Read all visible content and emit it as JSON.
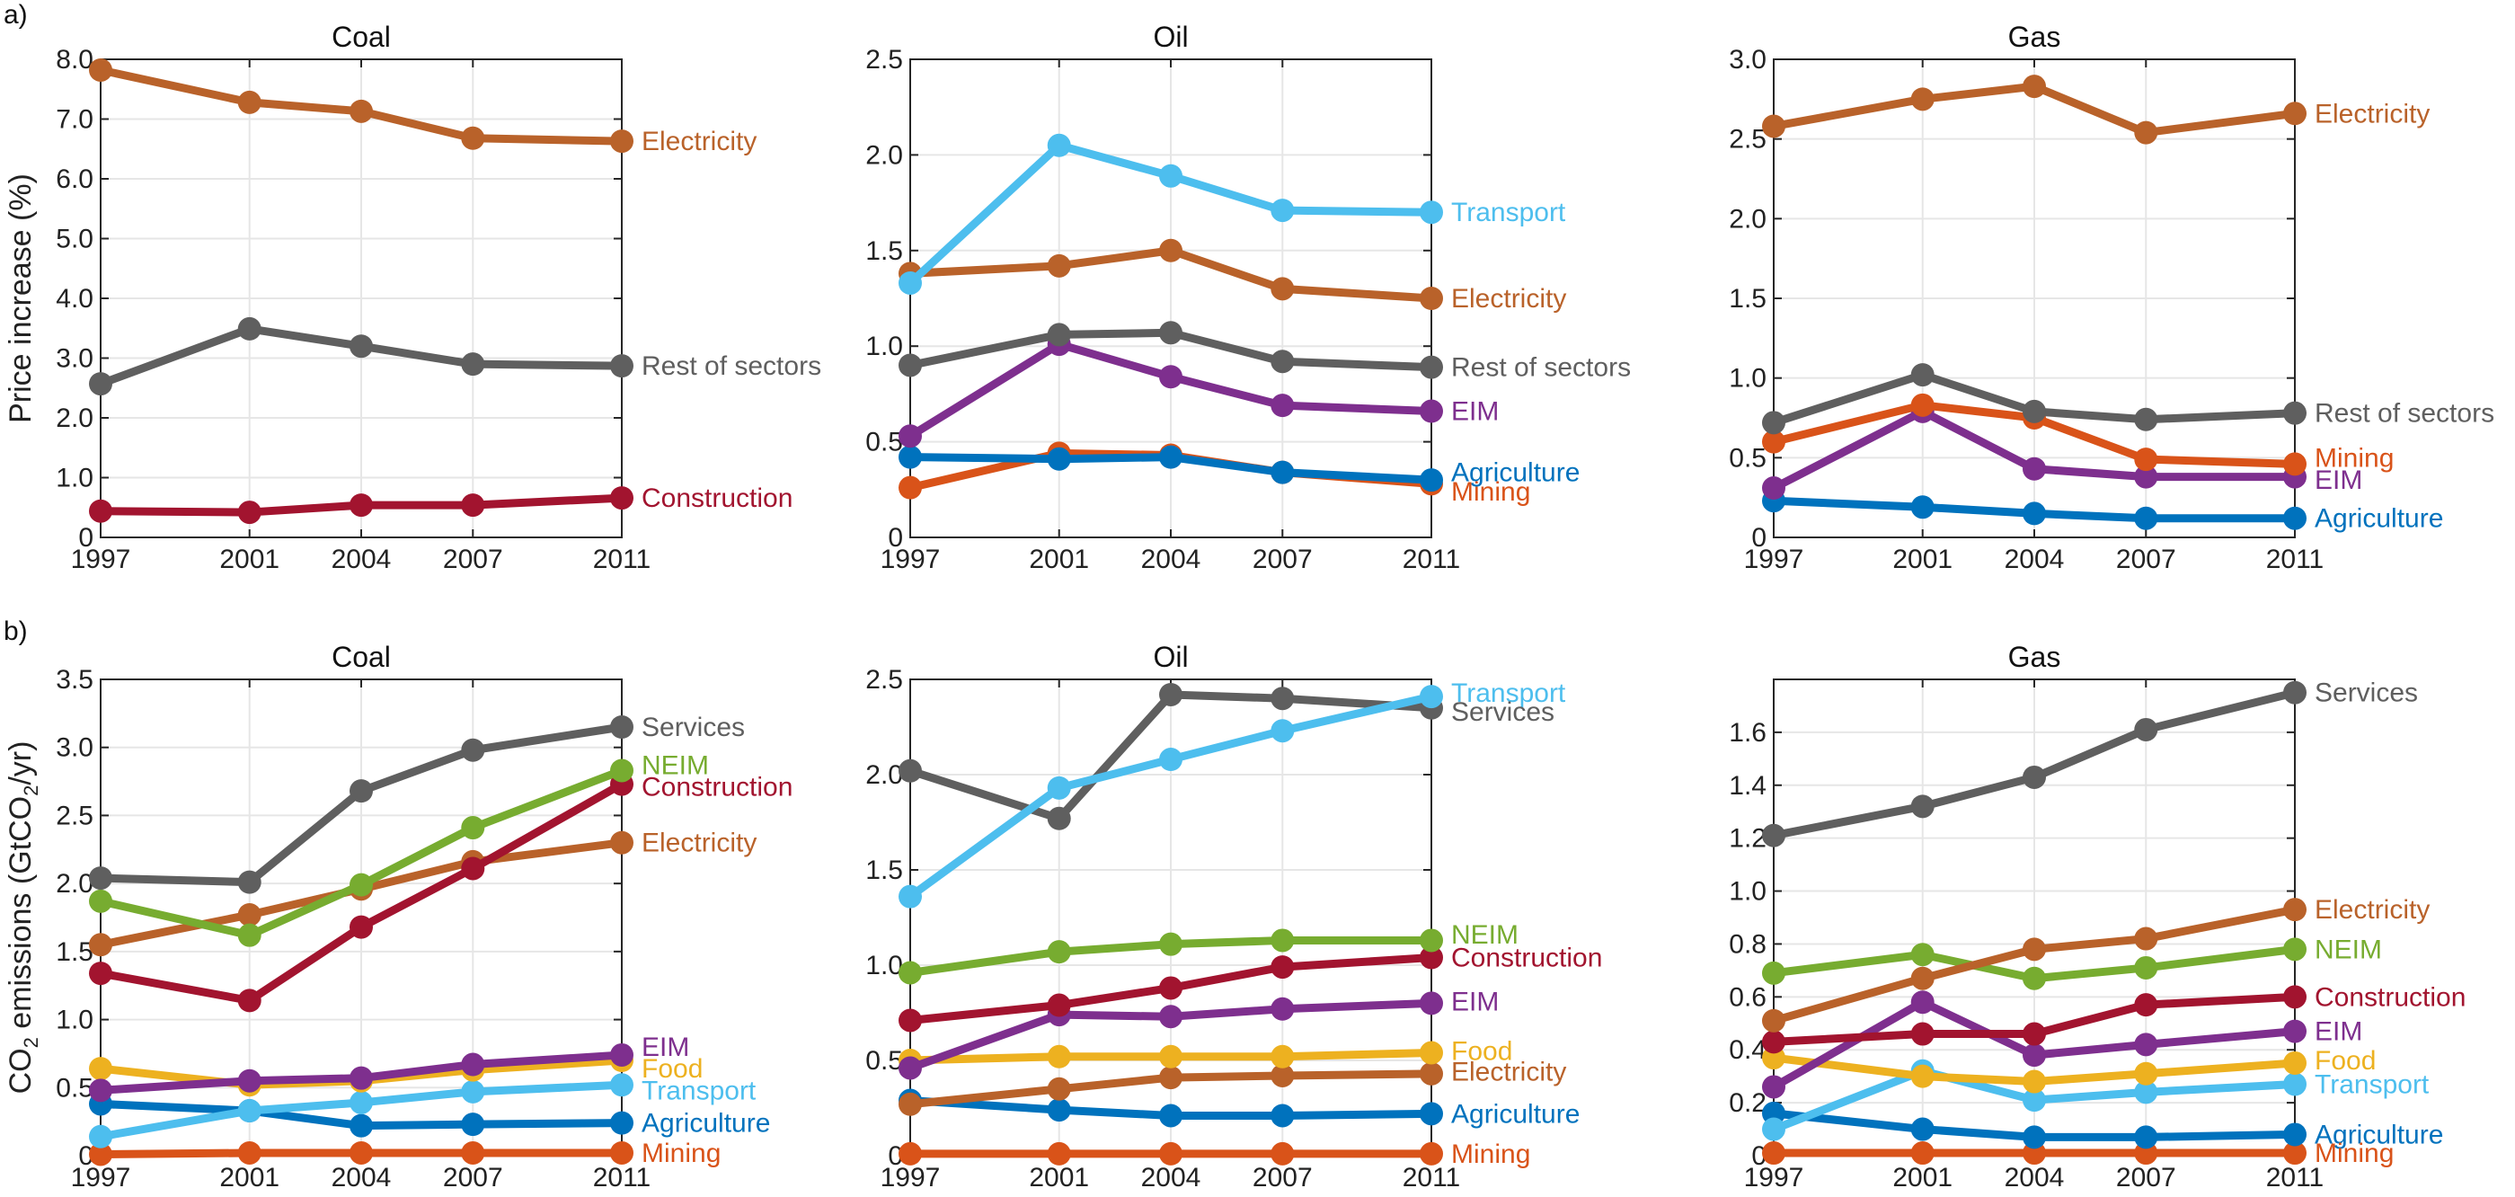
{
  "figure": {
    "row_labels": [
      "a)",
      "b)"
    ]
  },
  "colors": {
    "Electricity": "#B9622A",
    "Rest of sectors": "#5F5F5F",
    "Services": "#5F5F5F",
    "Construction": "#A2142F",
    "Transport": "#4DBEEE",
    "EIM": "#7E2F8E",
    "Agriculture": "#0072BD",
    "Mining": "#D95319",
    "NEIM": "#77AC30",
    "Food": "#EDB120",
    "grid": "#E6E6E6",
    "axis": "#262626"
  },
  "chart_data": [
    {
      "id": "a-coal",
      "row": "a)",
      "type": "line",
      "title": "Coal",
      "xlabel": "",
      "ylabel": "Price increase (%)",
      "x": [
        1997,
        2001,
        2004,
        2007,
        2011
      ],
      "xticks": [
        "1997",
        "2001",
        "2004",
        "2007",
        "2011"
      ],
      "ylim": [
        0,
        8
      ],
      "yticks": [
        0,
        1,
        2,
        3,
        4,
        5,
        6,
        7,
        8
      ],
      "yticklabels": [
        "0",
        "1.0",
        "2.0",
        "3.0",
        "4.0",
        "5.0",
        "6.0",
        "7.0",
        "8.0"
      ],
      "grid": true,
      "legend": "inline-right",
      "series": [
        {
          "name": "Electricity",
          "values": [
            7.82,
            7.28,
            7.13,
            6.68,
            6.63
          ]
        },
        {
          "name": "Rest of sectors",
          "values": [
            2.57,
            3.49,
            3.2,
            2.9,
            2.87
          ]
        },
        {
          "name": "Construction",
          "values": [
            0.44,
            0.42,
            0.54,
            0.54,
            0.66
          ]
        }
      ]
    },
    {
      "id": "a-oil",
      "row": "a)",
      "type": "line",
      "title": "Oil",
      "xlabel": "",
      "ylabel": "",
      "x": [
        1997,
        2001,
        2004,
        2007,
        2011
      ],
      "xticks": [
        "1997",
        "2001",
        "2004",
        "2007",
        "2011"
      ],
      "ylim": [
        0,
        2.5
      ],
      "yticks": [
        0,
        0.5,
        1,
        1.5,
        2,
        2.5
      ],
      "yticklabels": [
        "0",
        "0.5",
        "1.0",
        "1.5",
        "2.0",
        "2.5"
      ],
      "grid": true,
      "legend": "inline-right",
      "series": [
        {
          "name": "Transport",
          "values": [
            1.33,
            2.05,
            1.89,
            1.71,
            1.7
          ]
        },
        {
          "name": "Electricity",
          "values": [
            1.38,
            1.42,
            1.5,
            1.3,
            1.25
          ]
        },
        {
          "name": "Rest of sectors",
          "values": [
            0.9,
            1.06,
            1.07,
            0.92,
            0.89
          ]
        },
        {
          "name": "EIM",
          "values": [
            0.53,
            1.01,
            0.84,
            0.69,
            0.66
          ]
        },
        {
          "name": "Agriculture",
          "values": [
            0.42,
            0.41,
            0.42,
            0.34,
            0.3
          ]
        },
        {
          "name": "Mining",
          "values": [
            0.26,
            0.44,
            0.43,
            0.34,
            0.28
          ]
        }
      ]
    },
    {
      "id": "a-gas",
      "row": "a)",
      "type": "line",
      "title": "Gas",
      "xlabel": "",
      "ylabel": "",
      "x": [
        1997,
        2001,
        2004,
        2007,
        2011
      ],
      "xticks": [
        "1997",
        "2001",
        "2004",
        "2007",
        "2011"
      ],
      "ylim": [
        0,
        3
      ],
      "yticks": [
        0,
        0.5,
        1,
        1.5,
        2,
        2.5,
        3
      ],
      "yticklabels": [
        "0",
        "0.5",
        "1.0",
        "1.5",
        "2.0",
        "2.5",
        "3.0"
      ],
      "grid": true,
      "legend": "inline-right",
      "series": [
        {
          "name": "Electricity",
          "values": [
            2.58,
            2.75,
            2.83,
            2.54,
            2.66
          ]
        },
        {
          "name": "Rest of sectors",
          "values": [
            0.72,
            1.02,
            0.79,
            0.74,
            0.78
          ]
        },
        {
          "name": "Mining",
          "values": [
            0.6,
            0.83,
            0.75,
            0.49,
            0.46
          ]
        },
        {
          "name": "EIM",
          "values": [
            0.31,
            0.79,
            0.43,
            0.38,
            0.38
          ]
        },
        {
          "name": "Agriculture",
          "values": [
            0.23,
            0.19,
            0.15,
            0.12,
            0.12
          ]
        }
      ]
    },
    {
      "id": "b-coal",
      "row": "b)",
      "type": "line",
      "title": "Coal",
      "xlabel": "",
      "ylabel": "CO2 emissions (GtCO2/yr)",
      "x": [
        1997,
        2001,
        2004,
        2007,
        2011
      ],
      "xticks": [
        "1997",
        "2001",
        "2004",
        "2007",
        "2011"
      ],
      "ylim": [
        0,
        3.5
      ],
      "yticks": [
        0,
        0.5,
        1,
        1.5,
        2,
        2.5,
        3,
        3.5
      ],
      "yticklabels": [
        "0",
        "0.5",
        "1.0",
        "1.5",
        "2.0",
        "2.5",
        "3.0",
        "3.5"
      ],
      "grid": true,
      "legend": "inline-right",
      "series": [
        {
          "name": "Services",
          "values": [
            2.04,
            2.01,
            2.68,
            2.98,
            3.15
          ]
        },
        {
          "name": "NEIM",
          "values": [
            1.87,
            1.62,
            1.99,
            2.41,
            2.83
          ]
        },
        {
          "name": "Construction",
          "values": [
            1.34,
            1.14,
            1.68,
            2.11,
            2.73
          ]
        },
        {
          "name": "Electricity",
          "values": [
            1.55,
            1.77,
            1.96,
            2.16,
            2.3
          ]
        },
        {
          "name": "EIM",
          "values": [
            0.48,
            0.55,
            0.57,
            0.67,
            0.74
          ]
        },
        {
          "name": "Food",
          "values": [
            0.64,
            0.52,
            0.55,
            0.63,
            0.7
          ]
        },
        {
          "name": "Transport",
          "values": [
            0.14,
            0.33,
            0.39,
            0.47,
            0.52
          ]
        },
        {
          "name": "Agriculture",
          "values": [
            0.38,
            0.33,
            0.22,
            0.23,
            0.24
          ]
        },
        {
          "name": "Mining",
          "values": [
            0.01,
            0.02,
            0.02,
            0.02,
            0.02
          ]
        }
      ]
    },
    {
      "id": "b-oil",
      "row": "b)",
      "type": "line",
      "title": "Oil",
      "xlabel": "",
      "ylabel": "",
      "x": [
        1997,
        2001,
        2004,
        2007,
        2011
      ],
      "xticks": [
        "1997",
        "2001",
        "2004",
        "2007",
        "2011"
      ],
      "ylim": [
        0,
        2.5
      ],
      "yticks": [
        0,
        0.5,
        1,
        1.5,
        2,
        2.5
      ],
      "yticklabels": [
        "0",
        "0.5",
        "1.0",
        "1.5",
        "2.0",
        "2.5"
      ],
      "grid": true,
      "legend": "inline-right",
      "series": [
        {
          "name": "Transport",
          "values": [
            1.36,
            1.93,
            2.08,
            2.23,
            2.41
          ]
        },
        {
          "name": "Services",
          "values": [
            2.02,
            1.77,
            2.42,
            2.4,
            2.35
          ]
        },
        {
          "name": "NEIM",
          "values": [
            0.96,
            1.07,
            1.11,
            1.13,
            1.13
          ]
        },
        {
          "name": "Construction",
          "values": [
            0.71,
            0.79,
            0.88,
            0.99,
            1.04
          ]
        },
        {
          "name": "EIM",
          "values": [
            0.46,
            0.74,
            0.73,
            0.77,
            0.8
          ]
        },
        {
          "name": "Food",
          "values": [
            0.5,
            0.52,
            0.52,
            0.52,
            0.54
          ]
        },
        {
          "name": "Electricity",
          "values": [
            0.27,
            0.35,
            0.41,
            0.42,
            0.43
          ]
        },
        {
          "name": "Agriculture",
          "values": [
            0.29,
            0.24,
            0.21,
            0.21,
            0.22
          ]
        },
        {
          "name": "Mining",
          "values": [
            0.01,
            0.01,
            0.01,
            0.01,
            0.01
          ]
        }
      ]
    },
    {
      "id": "b-gas",
      "row": "b)",
      "type": "line",
      "title": "Gas",
      "xlabel": "",
      "ylabel": "",
      "x": [
        1997,
        2001,
        2004,
        2007,
        2011
      ],
      "xticks": [
        "1997",
        "2001",
        "2004",
        "2007",
        "2011"
      ],
      "ylim": [
        0,
        1.8
      ],
      "yticks": [
        0,
        0.2,
        0.4,
        0.6,
        0.8,
        1,
        1.2,
        1.4,
        1.6
      ],
      "yticklabels": [
        "0",
        "0.2",
        "0.4",
        "0.6",
        "0.8",
        "1.0",
        "1.2",
        "1.4",
        "1.6"
      ],
      "grid": true,
      "legend": "inline-right",
      "series": [
        {
          "name": "Services",
          "values": [
            1.21,
            1.32,
            1.43,
            1.61,
            1.75
          ]
        },
        {
          "name": "Electricity",
          "values": [
            0.51,
            0.67,
            0.78,
            0.82,
            0.93
          ]
        },
        {
          "name": "NEIM",
          "values": [
            0.69,
            0.76,
            0.67,
            0.71,
            0.78
          ]
        },
        {
          "name": "Construction",
          "values": [
            0.43,
            0.46,
            0.46,
            0.57,
            0.6
          ]
        },
        {
          "name": "EIM",
          "values": [
            0.26,
            0.58,
            0.38,
            0.42,
            0.47
          ]
        },
        {
          "name": "Food",
          "values": [
            0.37,
            0.3,
            0.28,
            0.31,
            0.35
          ]
        },
        {
          "name": "Transport",
          "values": [
            0.1,
            0.32,
            0.21,
            0.24,
            0.27
          ]
        },
        {
          "name": "Agriculture",
          "values": [
            0.16,
            0.1,
            0.07,
            0.07,
            0.08
          ]
        },
        {
          "name": "Mining",
          "values": [
            0.01,
            0.01,
            0.01,
            0.01,
            0.01
          ]
        }
      ]
    }
  ],
  "end_labels": {
    "a-coal": [
      {
        "name": "Electricity",
        "text": "Electricity",
        "y": 6.63
      },
      {
        "name": "Rest of sectors",
        "text": "Rest of sectors",
        "y": 2.87
      },
      {
        "name": "Construction",
        "text": "Construction",
        "y": 0.66
      }
    ],
    "a-oil": [
      {
        "name": "Transport",
        "text": "Transport",
        "y": 1.7
      },
      {
        "name": "Electricity",
        "text": "Electricity",
        "y": 1.25
      },
      {
        "name": "Rest of sectors",
        "text": "Rest of sectors",
        "y": 0.89
      },
      {
        "name": "EIM",
        "text": "EIM",
        "y": 0.66
      },
      {
        "name": "Agriculture",
        "text": "Agriculture",
        "y": 0.34
      },
      {
        "name": "Mining",
        "text": "Mining",
        "y": 0.24
      }
    ],
    "a-gas": [
      {
        "name": "Electricity",
        "text": "Electricity",
        "y": 2.66
      },
      {
        "name": "Rest of sectors",
        "text": "Rest of sectors",
        "y": 0.78
      },
      {
        "name": "Mining",
        "text": "Mining",
        "y": 0.5
      },
      {
        "name": "EIM",
        "text": "EIM",
        "y": 0.36
      },
      {
        "name": "Agriculture",
        "text": "Agriculture",
        "y": 0.12
      }
    ],
    "b-coal": [
      {
        "name": "Services",
        "text": "Services",
        "y": 3.15
      },
      {
        "name": "NEIM",
        "text": "NEIM",
        "y": 2.87
      },
      {
        "name": "Construction",
        "text": "Construction",
        "y": 2.71
      },
      {
        "name": "Electricity",
        "text": "Electricity",
        "y": 2.3
      },
      {
        "name": "EIM",
        "text": "EIM",
        "y": 0.8
      },
      {
        "name": "Food",
        "text": "Food",
        "y": 0.64
      },
      {
        "name": "Transport",
        "text": "Transport",
        "y": 0.48
      },
      {
        "name": "Agriculture",
        "text": "Agriculture",
        "y": 0.24
      },
      {
        "name": "Mining",
        "text": "Mining",
        "y": 0.02
      }
    ],
    "b-oil": [
      {
        "name": "Transport",
        "text": "Transport",
        "y": 2.43
      },
      {
        "name": "Services",
        "text": "Services",
        "y": 2.33
      },
      {
        "name": "NEIM",
        "text": "NEIM",
        "y": 1.16
      },
      {
        "name": "Construction",
        "text": "Construction",
        "y": 1.04
      },
      {
        "name": "EIM",
        "text": "EIM",
        "y": 0.81
      },
      {
        "name": "Food",
        "text": "Food",
        "y": 0.55
      },
      {
        "name": "Electricity",
        "text": "Electricity",
        "y": 0.44
      },
      {
        "name": "Agriculture",
        "text": "Agriculture",
        "y": 0.22
      },
      {
        "name": "Mining",
        "text": "Mining",
        "y": 0.01
      }
    ],
    "b-gas": [
      {
        "name": "Services",
        "text": "Services",
        "y": 1.75
      },
      {
        "name": "Electricity",
        "text": "Electricity",
        "y": 0.93
      },
      {
        "name": "NEIM",
        "text": "NEIM",
        "y": 0.78
      },
      {
        "name": "Construction",
        "text": "Construction",
        "y": 0.6
      },
      {
        "name": "EIM",
        "text": "EIM",
        "y": 0.47
      },
      {
        "name": "Food",
        "text": "Food",
        "y": 0.36
      },
      {
        "name": "Transport",
        "text": "Transport",
        "y": 0.27
      },
      {
        "name": "Agriculture",
        "text": "Agriculture",
        "y": 0.08
      },
      {
        "name": "Mining",
        "text": "Mining",
        "y": 0.01
      }
    ]
  }
}
